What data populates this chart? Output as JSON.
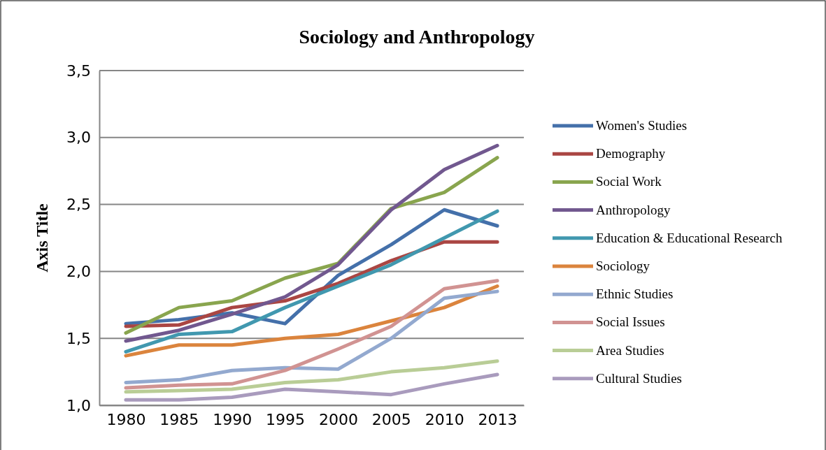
{
  "chart_data": {
    "type": "line",
    "title": "Sociology and Anthropology",
    "ylabel": "Axis Title",
    "categories": [
      "1980",
      "1985",
      "1990",
      "1995",
      "2000",
      "2005",
      "2010",
      "2013"
    ],
    "series": [
      {
        "name": "Women's Studies",
        "color": "#4470aa",
        "values": [
          1.61,
          1.64,
          1.69,
          1.61,
          1.97,
          2.2,
          2.46,
          2.34
        ]
      },
      {
        "name": "Demography",
        "color": "#aa4643",
        "values": [
          1.59,
          1.6,
          1.73,
          1.78,
          1.91,
          2.08,
          2.22,
          2.22
        ]
      },
      {
        "name": "Social Work",
        "color": "#89a54e",
        "values": [
          1.54,
          1.73,
          1.78,
          1.95,
          2.06,
          2.47,
          2.59,
          2.85
        ]
      },
      {
        "name": "Anthropology",
        "color": "#71588f",
        "values": [
          1.48,
          1.56,
          1.68,
          1.81,
          2.05,
          2.46,
          2.76,
          2.94
        ]
      },
      {
        "name": "Education & Educational Research",
        "color": "#4198af",
        "values": [
          1.4,
          1.53,
          1.55,
          1.73,
          1.89,
          2.05,
          2.25,
          2.45
        ]
      },
      {
        "name": "Sociology",
        "color": "#db843d",
        "values": [
          1.37,
          1.45,
          1.45,
          1.5,
          1.53,
          1.63,
          1.73,
          1.89
        ]
      },
      {
        "name": "Ethnic Studies",
        "color": "#93a9cf",
        "values": [
          1.17,
          1.19,
          1.26,
          1.28,
          1.27,
          1.5,
          1.8,
          1.85
        ]
      },
      {
        "name": "Social Issues",
        "color": "#d19392",
        "values": [
          1.13,
          1.15,
          1.16,
          1.26,
          1.42,
          1.59,
          1.87,
          1.93
        ]
      },
      {
        "name": "Area Studies",
        "color": "#b9cd96",
        "values": [
          1.1,
          1.11,
          1.12,
          1.17,
          1.19,
          1.25,
          1.28,
          1.33
        ]
      },
      {
        "name": "Cultural Studies",
        "color": "#a99bbd",
        "values": [
          1.04,
          1.04,
          1.06,
          1.12,
          1.1,
          1.08,
          1.16,
          1.23
        ]
      }
    ],
    "ylim": [
      1.0,
      3.5
    ],
    "yticks": [
      {
        "value": 1.0,
        "label": "1,0"
      },
      {
        "value": 1.5,
        "label": "1,5"
      },
      {
        "value": 2.0,
        "label": "2,0"
      },
      {
        "value": 2.5,
        "label": "2,5"
      },
      {
        "value": 3.0,
        "label": "3,0"
      },
      {
        "value": 3.5,
        "label": "3,5"
      }
    ],
    "grid": "y",
    "legend": "right",
    "marker": "none",
    "line_style": "solid"
  }
}
